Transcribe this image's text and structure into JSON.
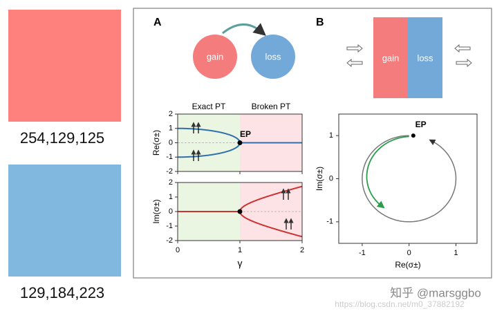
{
  "swatches": [
    {
      "label": "254,129,125",
      "color": "#fe817d"
    },
    {
      "label": "129,184,223",
      "color": "#81b8df"
    }
  ],
  "figure": {
    "panel_a": {
      "label": "A",
      "gain": "gain",
      "loss": "loss",
      "exact": "Exact PT",
      "broken": "Broken PT",
      "ep": "EP",
      "xlabel": "γ",
      "xlim": [
        0,
        2
      ],
      "xticks": [
        0,
        1,
        2
      ],
      "re_plot": {
        "ylabel": "Re(σ±)",
        "ylim": [
          -2,
          2
        ],
        "yticks": [
          -2,
          -1,
          0,
          1,
          2
        ]
      },
      "im_plot": {
        "ylabel": "Im(σ±)",
        "ylim": [
          -2,
          2
        ],
        "yticks": [
          -2,
          -1,
          0,
          1,
          2
        ]
      }
    },
    "panel_b": {
      "label": "B",
      "gain": "gain",
      "loss": "loss",
      "ep": "EP",
      "xlabel": "Re(σ±)",
      "ylabel": "Im(σ±)",
      "xlim": [
        -1.5,
        1.45
      ],
      "xticks": [
        -1,
        0,
        1
      ],
      "ylim": [
        -1.5,
        1.5
      ],
      "yticks": [
        -1,
        0,
        1
      ]
    }
  },
  "watermark": "知乎 @marsggbo",
  "url": "https://blog.csdn.net/m0_37882192"
}
